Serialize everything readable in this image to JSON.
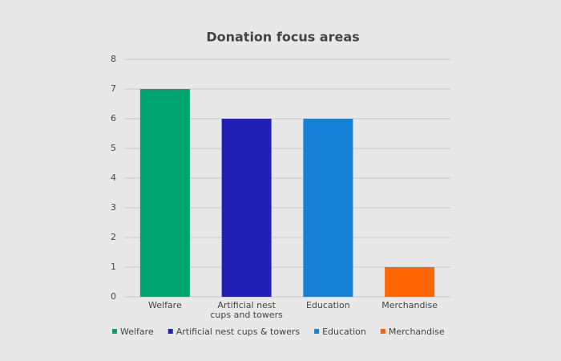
{
  "chart_data": {
    "type": "bar",
    "title": "Donation focus areas",
    "categories": [
      "Welfare",
      "Artificial nest cups and towers",
      "Education",
      "Merchandise"
    ],
    "values": [
      7,
      6,
      6,
      1
    ],
    "colors": [
      "#00a46f",
      "#2121b9",
      "#1581d9",
      "#ff6500"
    ],
    "legend": [
      "Welfare",
      "Artificial nest cups & towers",
      "Education",
      "Merchandise"
    ],
    "ylim": [
      0,
      8
    ],
    "yticks": [
      0,
      1,
      2,
      3,
      4,
      5,
      6,
      7,
      8
    ],
    "grid": true
  }
}
